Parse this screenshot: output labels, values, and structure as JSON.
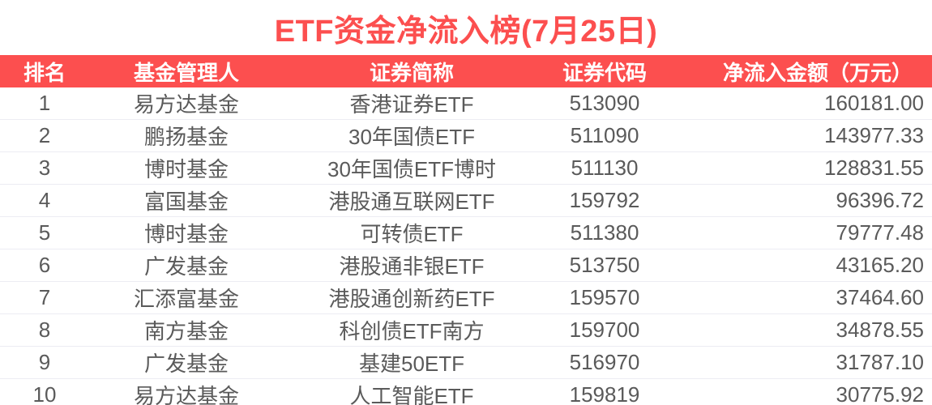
{
  "title": "ETF资金净流入榜(7月25日)",
  "colors": {
    "accent_red": "#fc4f4f",
    "body_text": "#5a5a5a",
    "row_separator": "#ececf3"
  },
  "table": {
    "columns": {
      "rank": "排名",
      "manager": "基金管理人",
      "name": "证券简称",
      "code": "证券代码",
      "amount": "净流入金额（万元）"
    },
    "rows": [
      {
        "rank": "1",
        "manager": "易方达基金",
        "name": "香港证券ETF",
        "code": "513090",
        "amount": "160181.00"
      },
      {
        "rank": "2",
        "manager": "鹏扬基金",
        "name": "30年国债ETF",
        "code": "511090",
        "amount": "143977.33"
      },
      {
        "rank": "3",
        "manager": "博时基金",
        "name": "30年国债ETF博时",
        "code": "511130",
        "amount": "128831.55"
      },
      {
        "rank": "4",
        "manager": "富国基金",
        "name": "港股通互联网ETF",
        "code": "159792",
        "amount": "96396.72"
      },
      {
        "rank": "5",
        "manager": "博时基金",
        "name": "可转债ETF",
        "code": "511380",
        "amount": "79777.48"
      },
      {
        "rank": "6",
        "manager": "广发基金",
        "name": "港股通非银ETF",
        "code": "513750",
        "amount": "43165.20"
      },
      {
        "rank": "7",
        "manager": "汇添富基金",
        "name": "港股通创新药ETF",
        "code": "159570",
        "amount": "37464.60"
      },
      {
        "rank": "8",
        "manager": "南方基金",
        "name": "科创债ETF南方",
        "code": "159700",
        "amount": "34878.55"
      },
      {
        "rank": "9",
        "manager": "广发基金",
        "name": "基建50ETF",
        "code": "516970",
        "amount": "31787.10"
      },
      {
        "rank": "10",
        "manager": "易方达基金",
        "name": "人工智能ETF",
        "code": "159819",
        "amount": "30775.92"
      }
    ]
  }
}
